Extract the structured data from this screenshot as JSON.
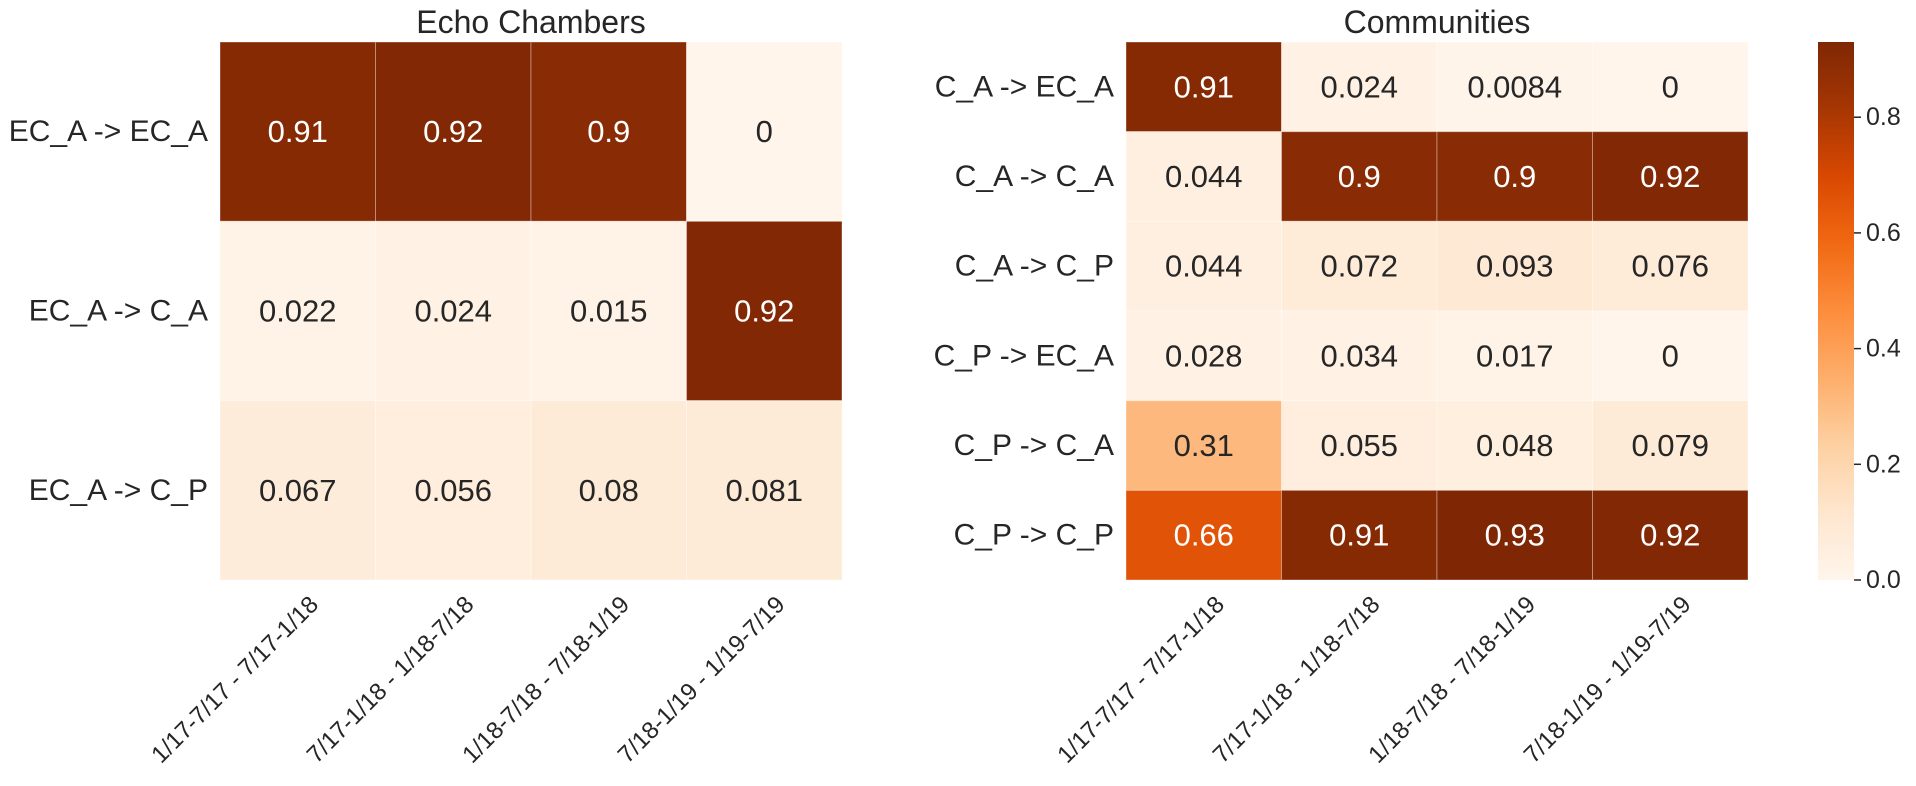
{
  "chart_data": [
    {
      "type": "heatmap",
      "title": "Echo Chambers",
      "rows": [
        "EC_A -> EC_A",
        "EC_A  -> C_A",
        "EC_A  -> C_P"
      ],
      "columns": [
        "1/17-7/17 - 7/17-1/18",
        "7/17-1/18 - 1/18-7/18",
        "1/18-7/18 - 7/18-1/19",
        "7/18-1/19 - 1/19-7/19"
      ],
      "values": [
        [
          "0.91",
          "0.92",
          "0.9",
          "0"
        ],
        [
          "0.022",
          "0.024",
          "0.015",
          "0.92"
        ],
        [
          "0.067",
          "0.056",
          "0.08",
          "0.081"
        ]
      ],
      "colormap": "Oranges"
    },
    {
      "type": "heatmap",
      "title": "Communities",
      "rows": [
        "C_A -> EC_A",
        "C_A  -> C_A",
        "C_A  -> C_P",
        "C_P -> EC_A",
        "C_P  -> C_A",
        "C_P  -> C_P"
      ],
      "columns": [
        "1/17-7/17 - 7/17-1/18",
        "7/17-1/18 - 1/18-7/18",
        "1/18-7/18 - 7/18-1/19",
        "7/18-1/19 - 1/19-7/19"
      ],
      "values": [
        [
          "0.91",
          "0.024",
          "0.0084",
          "0"
        ],
        [
          "0.044",
          "0.9",
          "0.9",
          "0.92"
        ],
        [
          "0.044",
          "0.072",
          "0.093",
          "0.076"
        ],
        [
          "0.028",
          "0.034",
          "0.017",
          "0"
        ],
        [
          "0.31",
          "0.055",
          "0.048",
          "0.079"
        ],
        [
          "0.66",
          "0.91",
          "0.93",
          "0.92"
        ]
      ],
      "colormap": "Oranges"
    }
  ],
  "colorbar": {
    "vmin": 0,
    "vmax": 0.93,
    "ticks": [
      "0.0",
      "0.2",
      "0.4",
      "0.6",
      "0.8"
    ]
  }
}
